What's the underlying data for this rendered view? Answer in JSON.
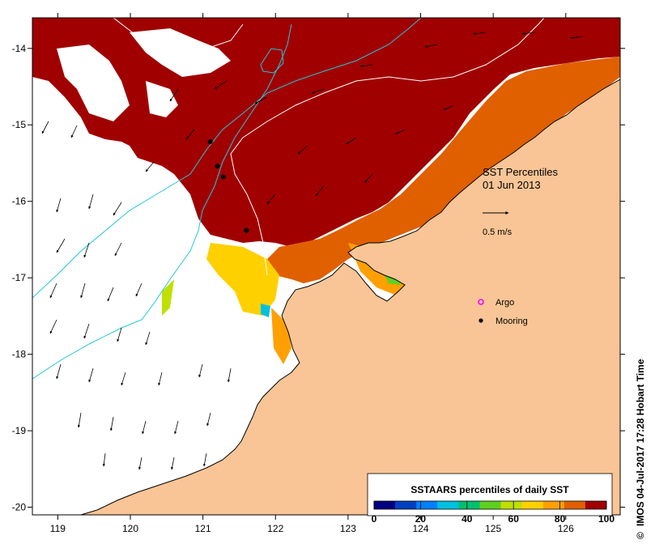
{
  "colors": {
    "land": "#f9c596",
    "ocean_no_data": "#ffffff",
    "coastline": "#000000",
    "isobath": "#22c7d8",
    "isobath_white": "#ffffff",
    "argo_marker": "#ff00ff",
    "mooring_marker": "#000000",
    "percentile_scale": [
      "#000080",
      "#0040c0",
      "#0080ff",
      "#00c0e0",
      "#00c070",
      "#60d020",
      "#c0e000",
      "#ffd000",
      "#ffa000",
      "#e06000",
      "#a00000"
    ]
  },
  "map": {
    "lon_range": [
      118.65,
      126.75
    ],
    "lat_range": [
      -20.1,
      -13.6
    ],
    "lon_ticks": [
      "119",
      "120",
      "121",
      "122",
      "123",
      "124",
      "125",
      "126"
    ],
    "lat_ticks": [
      "-14",
      "-15",
      "-16",
      "-17",
      "-18",
      "-19",
      "-20"
    ],
    "moorings": [
      {
        "lon": 121.1,
        "lat": -15.22
      },
      {
        "lon": 121.2,
        "lat": -15.54
      },
      {
        "lon": 121.28,
        "lat": -15.68
      },
      {
        "lon": 121.6,
        "lat": -16.38
      }
    ]
  },
  "legend": {
    "title": "SST Percentiles",
    "date": "01 Jun 2013",
    "arrow_label": "0.5 m/s",
    "argo_label": "Argo",
    "mooring_label": "Mooring"
  },
  "colorbar": {
    "title": "SSTAARS percentiles of daily SST",
    "ticks": [
      "0",
      "20",
      "40",
      "60",
      "80",
      "100"
    ]
  },
  "credit": "IMOS 04-Jul-2017 17:28 Hobart Time",
  "copyright_symbol": "©"
}
